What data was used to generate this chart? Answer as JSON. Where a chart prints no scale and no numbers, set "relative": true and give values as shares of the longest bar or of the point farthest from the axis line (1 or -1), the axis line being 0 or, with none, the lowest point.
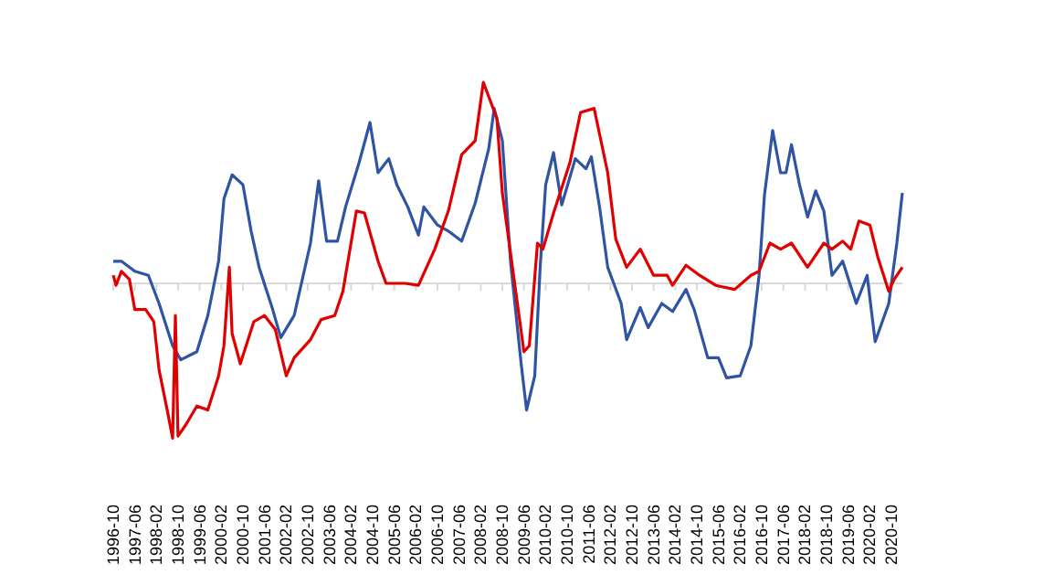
{
  "chart_data": {
    "type": "line",
    "relative": true,
    "grid": false,
    "marker": "none",
    "xlim": [
      "1996-10",
      "2021-02"
    ],
    "line_style": "solid",
    "xticks": [
      "1996-10",
      "1997-06",
      "1998-02",
      "1998-10",
      "1999-06",
      "2000-02",
      "2000-10",
      "2001-06",
      "2002-02",
      "2002-10",
      "2003-06",
      "2004-02",
      "2004-10",
      "2005-06",
      "2006-02",
      "2006-10",
      "2007-06",
      "2008-02",
      "2008-10",
      "2009-06",
      "2010-02",
      "2010-10",
      "2011-06",
      "2012-02",
      "2012-10",
      "2013-06",
      "2014-02",
      "2014-10",
      "2015-06",
      "2016-02",
      "2016-10",
      "2017-06",
      "2018-02",
      "2018-10",
      "2019-06",
      "2020-02",
      "2020-10"
    ],
    "series": [
      {
        "color": "#2f54a3",
        "x": [
          "1996-10",
          "1997-01",
          "1997-06",
          "1997-11",
          "1998-03",
          "1998-08",
          "1998-11",
          "1999-05",
          "1999-09",
          "2000-01",
          "2000-03",
          "2000-06",
          "2000-10",
          "2001-01",
          "2001-04",
          "2001-09",
          "2001-12",
          "2002-05",
          "2002-11",
          "2003-02",
          "2003-05",
          "2003-09",
          "2003-12",
          "2004-05",
          "2004-09",
          "2004-12",
          "2005-04",
          "2005-07",
          "2005-11",
          "2006-03",
          "2006-05",
          "2006-10",
          "2007-02",
          "2007-07",
          "2007-12",
          "2008-05",
          "2008-07",
          "2008-10",
          "2009-01",
          "2009-05",
          "2009-07",
          "2009-10",
          "2009-12",
          "2010-02",
          "2010-05",
          "2010-08",
          "2011-01",
          "2011-05",
          "2011-07",
          "2011-10",
          "2012-01",
          "2012-06",
          "2012-08",
          "2013-01",
          "2013-04",
          "2013-09",
          "2014-01",
          "2014-06",
          "2014-09",
          "2015-02",
          "2015-06",
          "2015-09",
          "2016-02",
          "2016-06",
          "2016-09",
          "2016-11",
          "2017-02",
          "2017-05",
          "2017-07",
          "2017-09",
          "2017-12",
          "2018-03",
          "2018-06",
          "2018-09",
          "2018-12",
          "2019-04",
          "2019-09",
          "2020-01",
          "2020-04",
          "2020-09",
          "2020-12",
          "2021-02"
        ],
        "values": [
          0.11,
          0.11,
          0.06,
          0.04,
          -0.1,
          -0.31,
          -0.38,
          -0.34,
          -0.16,
          0.11,
          0.42,
          0.54,
          0.49,
          0.26,
          0.08,
          -0.13,
          -0.27,
          -0.16,
          0.2,
          0.51,
          0.21,
          0.21,
          0.38,
          0.6,
          0.8,
          0.55,
          0.62,
          0.49,
          0.38,
          0.24,
          0.38,
          0.29,
          0.26,
          0.21,
          0.4,
          0.67,
          0.87,
          0.71,
          0.11,
          -0.4,
          -0.63,
          -0.46,
          0.08,
          0.49,
          0.65,
          0.39,
          0.62,
          0.57,
          0.63,
          0.38,
          0.08,
          -0.1,
          -0.28,
          -0.12,
          -0.22,
          -0.1,
          -0.14,
          -0.03,
          -0.13,
          -0.37,
          -0.37,
          -0.47,
          -0.46,
          -0.31,
          0.04,
          0.44,
          0.76,
          0.55,
          0.55,
          0.69,
          0.49,
          0.33,
          0.46,
          0.36,
          0.04,
          0.11,
          -0.1,
          0.04,
          -0.29,
          -0.1,
          0.2,
          0.45
        ]
      },
      {
        "color": "#e00000",
        "x": [
          "1996-10",
          "1996-11",
          "1997-01",
          "1997-04",
          "1997-06",
          "1997-10",
          "1998-01",
          "1998-03",
          "1998-06",
          "1998-08",
          "1998-09",
          "1998-10",
          "1999-01",
          "1999-05",
          "1999-09",
          "2000-01",
          "2000-03",
          "2000-05",
          "2000-06",
          "2000-09",
          "2001-02",
          "2001-06",
          "2001-10",
          "2002-02",
          "2002-05",
          "2002-11",
          "2003-03",
          "2003-08",
          "2003-11",
          "2004-04",
          "2004-07",
          "2004-12",
          "2005-03",
          "2005-10",
          "2006-03",
          "2006-09",
          "2007-02",
          "2007-07",
          "2007-12",
          "2008-03",
          "2008-08",
          "2008-10",
          "2009-03",
          "2009-06",
          "2009-08",
          "2009-11",
          "2010-01",
          "2010-05",
          "2010-11",
          "2011-03",
          "2011-08",
          "2012-01",
          "2012-04",
          "2012-08",
          "2013-01",
          "2013-06",
          "2013-11",
          "2014-01",
          "2014-06",
          "2014-11",
          "2015-05",
          "2015-12",
          "2016-06",
          "2016-09",
          "2017-01",
          "2017-05",
          "2017-09",
          "2018-03",
          "2018-09",
          "2018-12",
          "2019-04",
          "2019-07",
          "2019-10",
          "2020-02",
          "2020-05",
          "2020-09",
          "2020-11",
          "2021-02"
        ],
        "values": [
          0.04,
          -0.01,
          0.06,
          0.02,
          -0.13,
          -0.13,
          -0.19,
          -0.43,
          -0.63,
          -0.77,
          -0.16,
          -0.76,
          -0.7,
          -0.61,
          -0.63,
          -0.46,
          -0.31,
          0.08,
          -0.25,
          -0.4,
          -0.19,
          -0.16,
          -0.23,
          -0.46,
          -0.37,
          -0.28,
          -0.18,
          -0.16,
          -0.04,
          0.36,
          0.35,
          0.11,
          0,
          0,
          -0.01,
          0.17,
          0.36,
          0.64,
          0.71,
          1.0,
          0.82,
          0.45,
          -0.04,
          -0.34,
          -0.31,
          0.2,
          0.17,
          0.35,
          0.6,
          0.85,
          0.87,
          0.55,
          0.22,
          0.08,
          0.17,
          0.04,
          0.04,
          -0.01,
          0.09,
          0.04,
          -0.01,
          -0.03,
          0.04,
          0.06,
          0.2,
          0.17,
          0.2,
          0.08,
          0.2,
          0.17,
          0.21,
          0.17,
          0.31,
          0.29,
          0.13,
          -0.04,
          0.02,
          0.08
        ]
      }
    ]
  }
}
